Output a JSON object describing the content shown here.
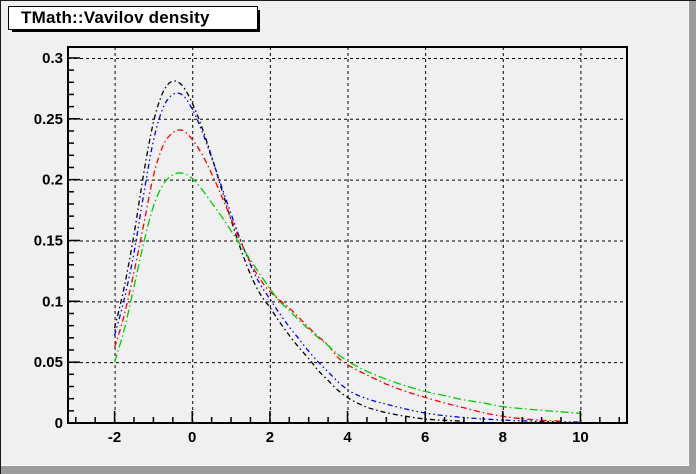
{
  "title_box": {
    "text": "TMath::Vavilov density"
  },
  "canvas": {
    "background_color": "#f0f0f0",
    "frame_color": "#000000",
    "grid_color": "#000000",
    "bevel_color": "#9c9c9c",
    "bevel_highlight": "#fafafa",
    "pave_fill": "#ffffff",
    "pave_shadow": "#000000"
  },
  "chart_data": {
    "type": "line",
    "title": "TMath::Vavilov density",
    "xlabel": "",
    "ylabel": "",
    "xlim": [
      -3.2,
      11.2
    ],
    "ylim": [
      0,
      0.309
    ],
    "grid": "dashed",
    "legend": "none",
    "x_major_ticks": [
      -2,
      0,
      2,
      4,
      6,
      8,
      10
    ],
    "x_tick_labels": [
      "-2",
      "0",
      "2",
      "4",
      "6",
      "8",
      "10"
    ],
    "x_minor_step": 0.5,
    "y_major_ticks": [
      0,
      0.05,
      0.1,
      0.15,
      0.2,
      0.25,
      0.3
    ],
    "y_tick_labels": [
      "0",
      "0.05",
      "0.1",
      "0.15",
      "0.2",
      "0.25",
      "0.3"
    ],
    "y_minor_step": 0.01,
    "series": [
      {
        "name": "vavilov-curve-black",
        "color": "#000000",
        "dash": [
          5,
          3,
          1.5,
          3
        ],
        "points": [
          [
            -2,
            0.078
          ],
          [
            -1.75,
            0.112
          ],
          [
            -1.5,
            0.155
          ],
          [
            -1.25,
            0.205
          ],
          [
            -1,
            0.247
          ],
          [
            -0.75,
            0.272
          ],
          [
            -0.5,
            0.281
          ],
          [
            -0.25,
            0.277
          ],
          [
            0,
            0.263
          ],
          [
            0.25,
            0.243
          ],
          [
            0.5,
            0.219
          ],
          [
            0.75,
            0.193
          ],
          [
            1,
            0.167
          ],
          [
            1.25,
            0.143
          ],
          [
            1.5,
            0.122
          ],
          [
            1.75,
            0.106
          ],
          [
            2,
            0.095
          ],
          [
            2.25,
            0.083
          ],
          [
            2.5,
            0.072
          ],
          [
            2.75,
            0.062
          ],
          [
            3,
            0.053
          ],
          [
            3.25,
            0.043
          ],
          [
            3.5,
            0.035
          ],
          [
            3.75,
            0.027
          ],
          [
            4,
            0.021
          ],
          [
            4.25,
            0.0165
          ],
          [
            4.5,
            0.013
          ],
          [
            4.75,
            0.0105
          ],
          [
            5,
            0.0085
          ],
          [
            5.5,
            0.0055
          ],
          [
            6,
            0.0033
          ],
          [
            6.5,
            0.0022
          ],
          [
            7,
            0.0015
          ]
        ]
      },
      {
        "name": "vavilov-curve-blue",
        "color": "#0000f0",
        "dash": [
          5,
          3,
          1.5,
          3,
          1.5,
          3
        ],
        "points": [
          [
            -2,
            0.072
          ],
          [
            -1.75,
            0.102
          ],
          [
            -1.5,
            0.14
          ],
          [
            -1.25,
            0.188
          ],
          [
            -1,
            0.232
          ],
          [
            -0.75,
            0.259
          ],
          [
            -0.5,
            0.27
          ],
          [
            -0.25,
            0.2695
          ],
          [
            0,
            0.258
          ],
          [
            0.25,
            0.24
          ],
          [
            0.5,
            0.218
          ],
          [
            0.75,
            0.195
          ],
          [
            1,
            0.172
          ],
          [
            1.25,
            0.15
          ],
          [
            1.5,
            0.13
          ],
          [
            1.75,
            0.114
          ],
          [
            2,
            0.102
          ],
          [
            2.25,
            0.09
          ],
          [
            2.5,
            0.079
          ],
          [
            2.75,
            0.069
          ],
          [
            3,
            0.059
          ],
          [
            3.25,
            0.05
          ],
          [
            3.5,
            0.042
          ],
          [
            3.75,
            0.034
          ],
          [
            4,
            0.0274
          ],
          [
            4.25,
            0.023
          ],
          [
            4.5,
            0.02
          ],
          [
            4.75,
            0.0175
          ],
          [
            5,
            0.0155
          ],
          [
            5.5,
            0.0115
          ],
          [
            6,
            0.0082
          ],
          [
            6.5,
            0.006
          ],
          [
            7,
            0.0045
          ],
          [
            7.5,
            0.0033
          ],
          [
            8,
            0.0025
          ],
          [
            8.5,
            0.0018
          ],
          [
            9,
            0.0013
          ],
          [
            9.5,
            0.001
          ],
          [
            10,
            0.0008
          ]
        ]
      },
      {
        "name": "vavilov-curve-red",
        "color": "#ff0000",
        "dash": [
          6,
          3,
          1.5,
          3
        ],
        "points": [
          [
            -2,
            0.062
          ],
          [
            -1.75,
            0.089
          ],
          [
            -1.5,
            0.124
          ],
          [
            -1.25,
            0.163
          ],
          [
            -1,
            0.203
          ],
          [
            -0.75,
            0.228
          ],
          [
            -0.5,
            0.2385
          ],
          [
            -0.25,
            0.2405
          ],
          [
            0,
            0.233
          ],
          [
            0.25,
            0.221
          ],
          [
            0.5,
            0.205
          ],
          [
            0.75,
            0.187
          ],
          [
            1,
            0.168
          ],
          [
            1.25,
            0.149
          ],
          [
            1.5,
            0.132
          ],
          [
            1.75,
            0.118
          ],
          [
            2,
            0.108
          ],
          [
            2.25,
            0.101
          ],
          [
            2.5,
            0.0945
          ],
          [
            2.75,
            0.0865
          ],
          [
            3,
            0.0785
          ],
          [
            3.25,
            0.071
          ],
          [
            3.5,
            0.064
          ],
          [
            3.75,
            0.054
          ],
          [
            4,
            0.048
          ],
          [
            4.25,
            0.0435
          ],
          [
            4.5,
            0.0395
          ],
          [
            5,
            0.032
          ],
          [
            5.5,
            0.026
          ],
          [
            6,
            0.021
          ],
          [
            6.5,
            0.0165
          ],
          [
            7,
            0.0125
          ],
          [
            7.5,
            0.0085
          ],
          [
            8,
            0.0055
          ],
          [
            8.5,
            0.0035
          ],
          [
            9,
            0.0022
          ],
          [
            9.5,
            0.0015
          ]
        ]
      },
      {
        "name": "vavilov-curve-green",
        "color": "#00cc00",
        "dash": [
          8,
          3,
          1.5,
          3
        ],
        "points": [
          [
            -2,
            0.05
          ],
          [
            -1.75,
            0.077
          ],
          [
            -1.5,
            0.112
          ],
          [
            -1.25,
            0.148
          ],
          [
            -1,
            0.178
          ],
          [
            -0.75,
            0.196
          ],
          [
            -0.5,
            0.204
          ],
          [
            -0.25,
            0.2053
          ],
          [
            0,
            0.201
          ],
          [
            0.25,
            0.192
          ],
          [
            0.5,
            0.181
          ],
          [
            0.75,
            0.17
          ],
          [
            1,
            0.158
          ],
          [
            1.25,
            0.146
          ],
          [
            1.5,
            0.134
          ],
          [
            1.75,
            0.122
          ],
          [
            2,
            0.1105
          ],
          [
            2.25,
            0.1
          ],
          [
            2.5,
            0.0925
          ],
          [
            2.75,
            0.0845
          ],
          [
            3,
            0.077
          ],
          [
            3.25,
            0.07
          ],
          [
            3.5,
            0.0635
          ],
          [
            3.75,
            0.0565
          ],
          [
            4,
            0.051
          ],
          [
            4.25,
            0.0465
          ],
          [
            4.5,
            0.0425
          ],
          [
            5,
            0.036
          ],
          [
            5.5,
            0.0305
          ],
          [
            6,
            0.026
          ],
          [
            6.5,
            0.0225
          ],
          [
            7,
            0.019
          ],
          [
            7.5,
            0.0165
          ],
          [
            8,
            0.0134
          ],
          [
            8.5,
            0.0118
          ],
          [
            9,
            0.0104
          ],
          [
            9.5,
            0.0092
          ],
          [
            10,
            0.008
          ]
        ]
      }
    ]
  }
}
